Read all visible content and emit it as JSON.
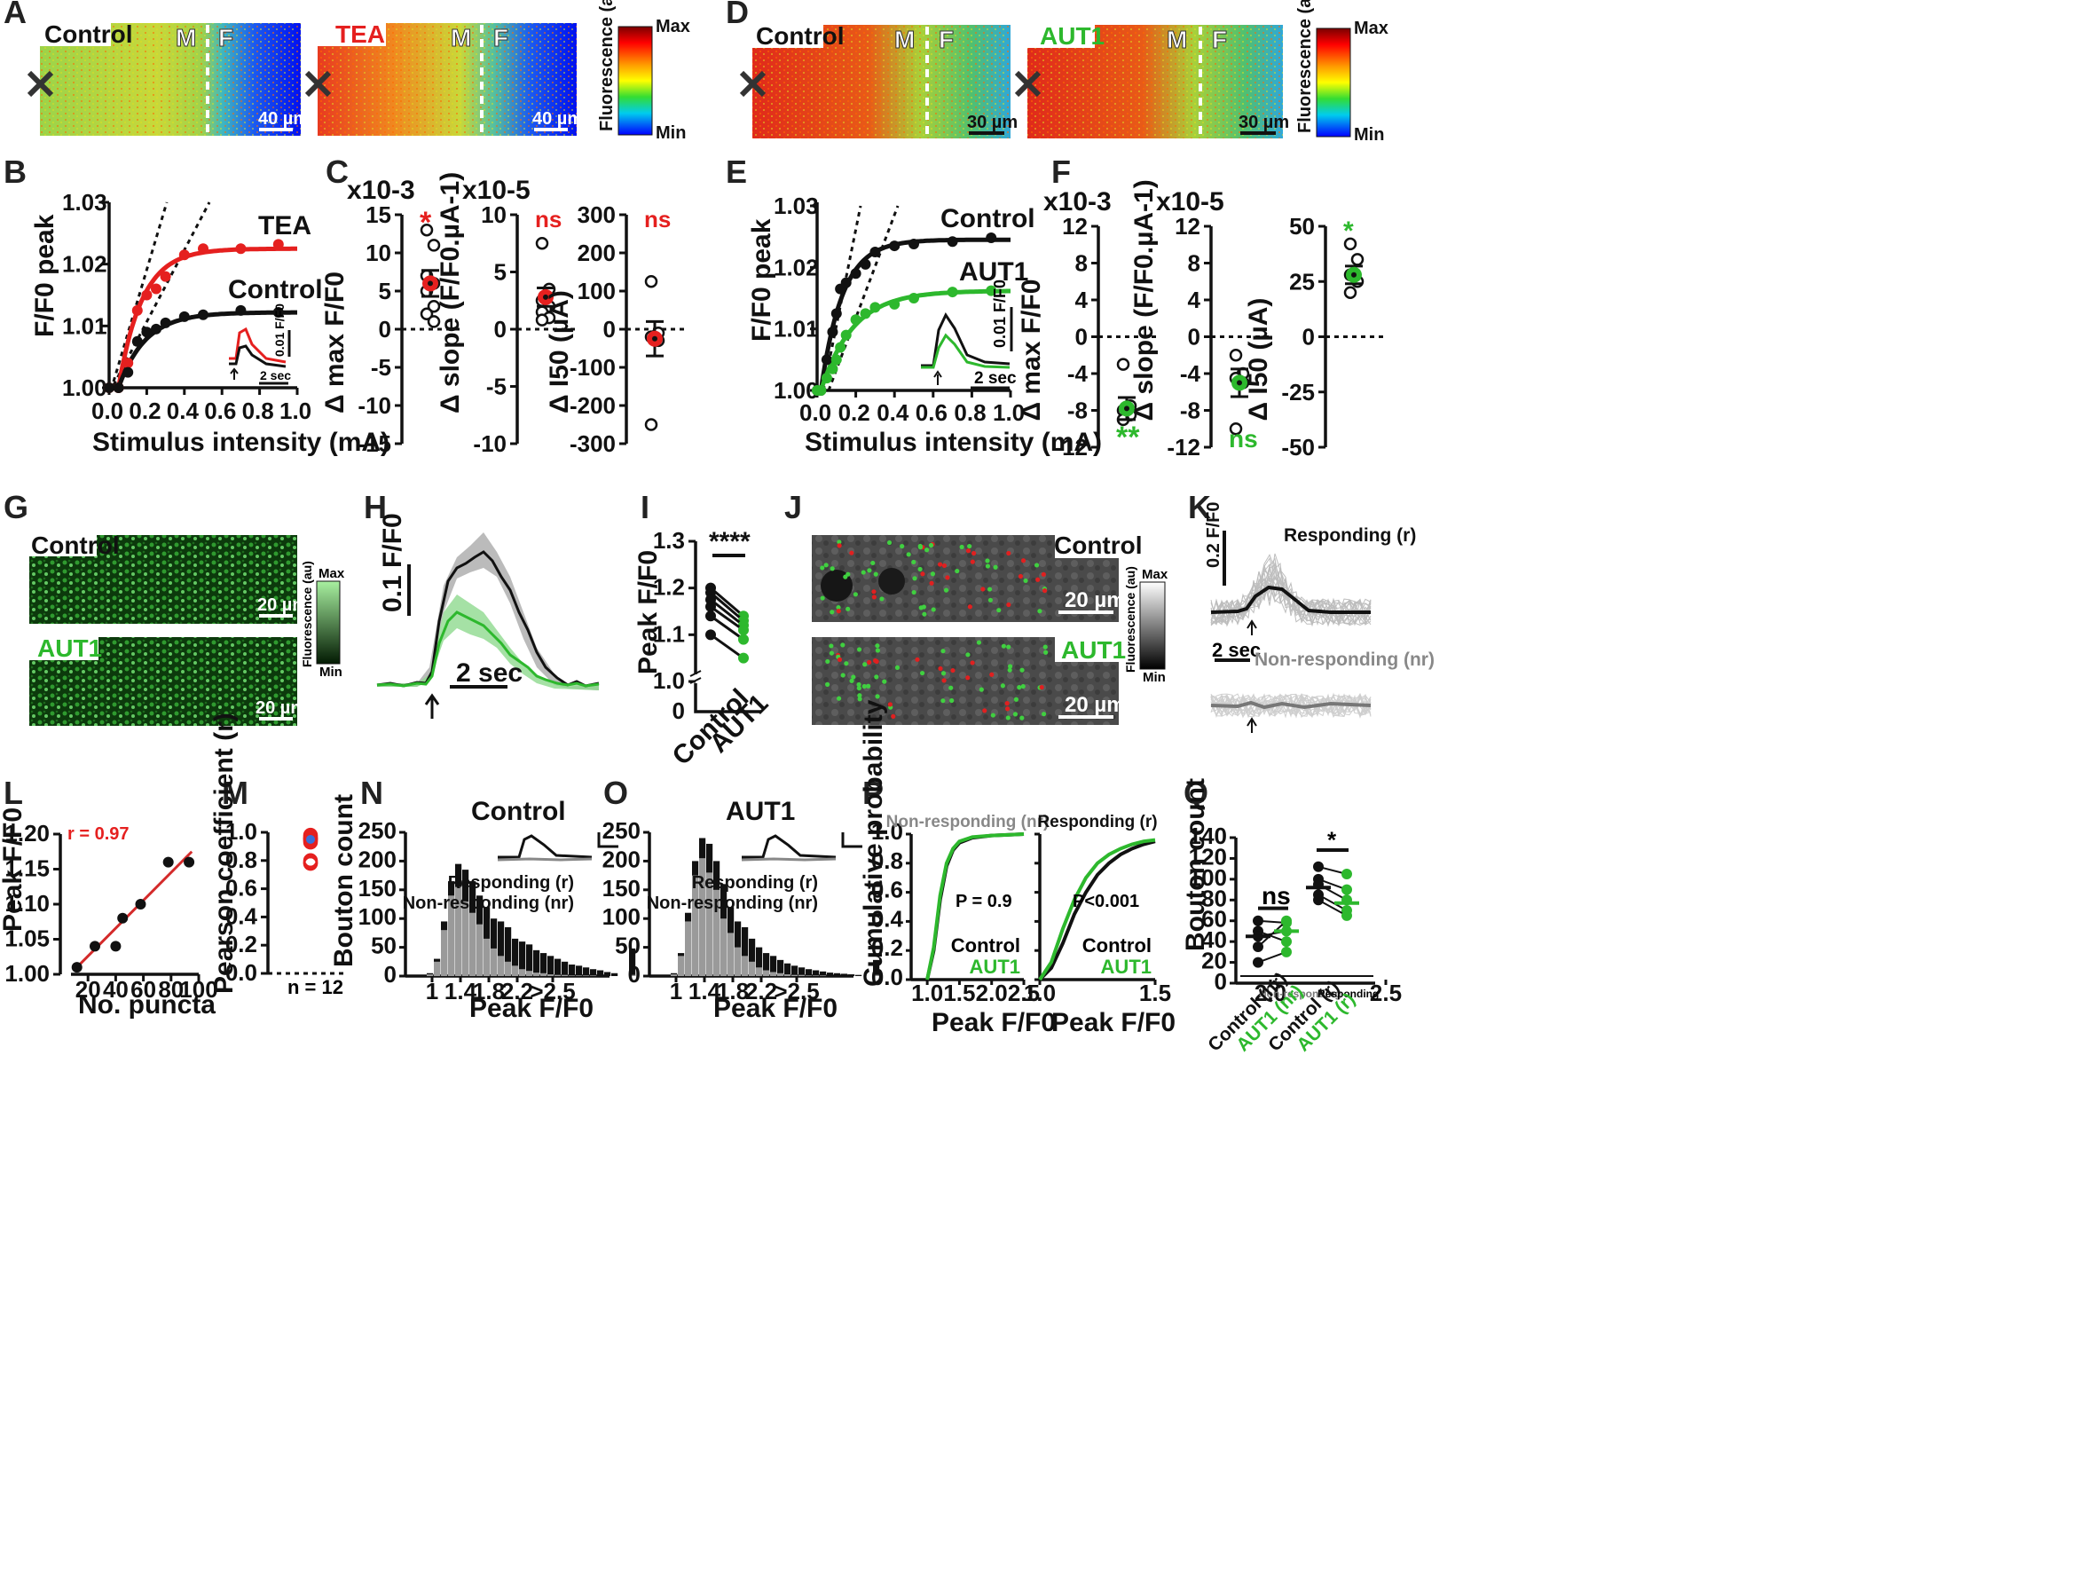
{
  "panel_letters": {
    "A": "A",
    "B": "B",
    "C": "C",
    "D": "D",
    "E": "E",
    "F": "F",
    "G": "G",
    "H": "H",
    "I": "I",
    "J": "J",
    "K": "K",
    "L": "L",
    "M": "M",
    "N": "N",
    "O": "O",
    "P": "P",
    "Q": "Q"
  },
  "colors": {
    "control": "#111111",
    "tea": "#e5201f",
    "aut1": "#2db82d",
    "nonresp": "#888888",
    "fitred": "#d42a2a"
  },
  "heatmap": {
    "control": "Control",
    "tea": "TEA",
    "aut1": "AUT1",
    "marker_m": "M",
    "marker_f": "F",
    "scale_a": "40 µm",
    "scale_d": "30 µm",
    "colorbar_label": "Fluorescence (au)",
    "max": "Max",
    "min": "Min"
  },
  "panelB": {
    "ylabel": "F/F0 peak",
    "xlabel": "Stimulus intensity (mA)",
    "yticks": [
      "1.00",
      "1.01",
      "1.02",
      "1.03"
    ],
    "xticks": [
      "0.0",
      "0.2",
      "0.4",
      "0.6",
      "0.8",
      "1.0"
    ],
    "series_tea": "TEA",
    "series_control": "Control",
    "inset_scale_y": "0.01 F/F0",
    "inset_scale_x": "2 sec"
  },
  "panelC": {
    "p1": {
      "ylabel": "Δ max F/F0",
      "exp": "x10-3",
      "yticks": [
        "15",
        "10",
        "5",
        "0",
        "-5",
        "-10",
        "-15"
      ],
      "sig": "*"
    },
    "p2": {
      "ylabel": "Δ slope (F/F0.µA-1)",
      "exp": "x10-5",
      "yticks": [
        "10",
        "5",
        "0",
        "-5",
        "-10"
      ],
      "sig": "ns"
    },
    "p3": {
      "ylabel": "Δ I50 (µA)",
      "yticks": [
        "300",
        "200",
        "100",
        "0",
        "-100",
        "-200",
        "-300"
      ],
      "sig": "ns"
    }
  },
  "panelE": {
    "ylabel": "F/F0 peak",
    "xlabel": "Stimulus intensity (mA)",
    "yticks": [
      "1.00",
      "1.01",
      "1.02",
      "1.03"
    ],
    "xticks": [
      "0.0",
      "0.2",
      "0.4",
      "0.6",
      "0.8",
      "1.0"
    ],
    "series_control": "Control",
    "series_aut1": "AUT1",
    "inset_scale_y": "0.01 F/F0",
    "inset_scale_x": "2 sec"
  },
  "panelF": {
    "p1": {
      "ylabel": "Δ max F/F0",
      "exp": "x10-3",
      "yticks": [
        "12",
        "8",
        "4",
        "0",
        "-4",
        "-8",
        "-12"
      ],
      "sig": "**"
    },
    "p2": {
      "ylabel": "Δ slope (F/F0.µA-1)",
      "exp": "x10-5",
      "yticks": [
        "12",
        "8",
        "4",
        "0",
        "-4",
        "-8",
        "-12"
      ],
      "sig": "ns"
    },
    "p3": {
      "ylabel": "Δ I50 (µA)",
      "yticks": [
        "50",
        "25",
        "0",
        "-25",
        "-50"
      ],
      "sig": "*"
    }
  },
  "panelG": {
    "control": "Control",
    "aut1": "AUT1",
    "scale": "20 µm",
    "colorbar_label": "Fluorescence (au)",
    "max": "Max",
    "min": "Min"
  },
  "panelH": {
    "scale_y": "0.1 F/F0",
    "scale_x": "2 sec"
  },
  "panelI": {
    "ylabel": "Peak F/F0",
    "yticks": [
      "1.3",
      "1.2",
      "1.1",
      "1.0",
      "0"
    ],
    "xcats": [
      "Control",
      "AUT1"
    ],
    "sig": "****"
  },
  "panelJ": {
    "control": "Control",
    "aut1": "AUT1",
    "scale": "20 µm",
    "colorbar_label": "Fluorescence (au)",
    "max": "Max",
    "min": "Min"
  },
  "panelK": {
    "scale_y": "0.2 F/F0",
    "scale_x": "2 sec",
    "resp": "Responding (r)",
    "nonresp": "Non-responding (nr)"
  },
  "panelL": {
    "ylabel": "Peak F/F0",
    "xlabel": "No. puncta",
    "r": "r = 0.97",
    "yticks": [
      "1.20",
      "1.15",
      "1.10",
      "1.05",
      "1.00"
    ],
    "xticks": [
      "20",
      "40",
      "60",
      "80",
      "100"
    ]
  },
  "panelM": {
    "ylabel": "Pearson coefficient (r)",
    "yticks": [
      "1.0",
      "0.8",
      "0.6",
      "0.4",
      "0.2",
      "0.0"
    ],
    "n": "n = 12"
  },
  "panelN": {
    "title": "Control",
    "ylabel": "Bouton count",
    "xlabel": "Peak F/F0",
    "yticks": [
      "250",
      "200",
      "150",
      "100",
      "50",
      "0"
    ],
    "xticks": [
      "1",
      "1.4",
      "1.8",
      "2.2",
      ">2.5"
    ],
    "resp": "Responding (r)",
    "nonresp": "Non-responding (nr)"
  },
  "panelO": {
    "title": "AUT1",
    "xlabel": "Peak F/F0",
    "yticks": [
      "250",
      "200",
      "150",
      "100",
      "50",
      "0"
    ],
    "xticks": [
      "1",
      "1.4",
      "1.8",
      "2.2",
      ">2.5"
    ],
    "resp": "Responding (r)",
    "nonresp": "Non-responding (nr)"
  },
  "panelP": {
    "ylabel": "Cumulative probability",
    "xlabel": "Peak F/F0",
    "yticks": [
      "1.0",
      "0.8",
      "0.6",
      "0.4",
      "0.2",
      "0.0"
    ],
    "xticks": [
      "1.0",
      "1.5",
      "2.0",
      "2.5"
    ],
    "xticks2": [
      "1.0",
      "1.5",
      "2.0",
      "2.5"
    ],
    "title_nr": "Non-responding (nr)",
    "title_r": "Responding (r)",
    "p_nr": "P = 0.9",
    "p_r": "P<0.001",
    "control": "Control",
    "aut1": "AUT1"
  },
  "panelQ": {
    "ylabel": "Bouton count",
    "yticks": [
      "140",
      "120",
      "100",
      "80",
      "60",
      "40",
      "20",
      "0"
    ],
    "xcats": [
      "Control (nr)",
      "AUT1 (nr)",
      "Control (r)",
      "AUT1 (r)"
    ],
    "group_nr": "Non-responding",
    "group_r": "Responding",
    "sig_nr": "ns",
    "sig_r": "*"
  },
  "chart_data": [
    {
      "type": "scatter",
      "panel": "B",
      "title": "",
      "xlabel": "Stimulus intensity (mA)",
      "ylabel": "F/F0 peak",
      "xlim": [
        0,
        1.0
      ],
      "ylim": [
        1.0,
        1.03
      ],
      "series": [
        {
          "name": "TEA",
          "x": [
            0,
            0.05,
            0.1,
            0.15,
            0.2,
            0.25,
            0.3,
            0.4,
            0.5,
            0.7,
            0.9
          ],
          "y": [
            1.0,
            1.0,
            1.004,
            1.0125,
            1.015,
            1.016,
            1.018,
            1.0215,
            1.0225,
            1.0225,
            1.0232
          ]
        },
        {
          "name": "Control",
          "x": [
            0,
            0.05,
            0.1,
            0.15,
            0.2,
            0.25,
            0.3,
            0.4,
            0.5,
            0.7,
            0.9
          ],
          "y": [
            1.0,
            1.0,
            1.0025,
            1.0075,
            1.009,
            1.0095,
            1.0105,
            1.0115,
            1.0118,
            1.0125,
            1.0122
          ]
        }
      ]
    },
    {
      "type": "scatter",
      "panel": "C1",
      "ylabel": "Δ max F/F0 (x10-3)",
      "ylim": [
        -15,
        15
      ],
      "mean": 6,
      "sem": 1.7,
      "values": [
        13,
        11,
        7,
        6,
        5,
        3,
        2,
        1
      ]
    },
    {
      "type": "scatter",
      "panel": "C2",
      "ylabel": "Δ slope (x10-5)",
      "ylim": [
        -10,
        10
      ],
      "mean": 2.8,
      "sem": 0.8,
      "values": [
        7.5,
        3.5,
        2.5,
        2,
        1.5,
        1,
        0.8
      ]
    },
    {
      "type": "scatter",
      "panel": "C3",
      "ylabel": "Δ I50 (µA)",
      "ylim": [
        -300,
        300
      ],
      "mean": -25,
      "sem": 45,
      "values": [
        125,
        -10,
        -20,
        -30,
        -250
      ]
    },
    {
      "type": "scatter",
      "panel": "E",
      "xlabel": "Stimulus intensity (mA)",
      "ylabel": "F/F0 peak",
      "xlim": [
        0,
        1.0
      ],
      "ylim": [
        1.0,
        1.03
      ],
      "series": [
        {
          "name": "Control",
          "x": [
            0,
            0.02,
            0.05,
            0.08,
            0.1,
            0.12,
            0.15,
            0.2,
            0.25,
            0.3,
            0.4,
            0.5,
            0.7,
            0.9
          ],
          "y": [
            1.0,
            1.0,
            1.005,
            1.0095,
            1.0125,
            1.0165,
            1.0175,
            1.019,
            1.0205,
            1.0225,
            1.0235,
            1.0238,
            1.0242,
            1.0248
          ]
        },
        {
          "name": "AUT1",
          "x": [
            0,
            0.02,
            0.05,
            0.08,
            0.1,
            0.12,
            0.15,
            0.2,
            0.25,
            0.3,
            0.4,
            0.5,
            0.7,
            0.9
          ],
          "y": [
            1.0,
            1.0,
            1.002,
            1.0035,
            1.005,
            1.007,
            1.009,
            1.0115,
            1.0125,
            1.0135,
            1.014,
            1.015,
            1.016,
            1.0162
          ]
        }
      ]
    },
    {
      "type": "scatter",
      "panel": "F1",
      "ylabel": "Δ max F/F0 (x10-3)",
      "ylim": [
        -12,
        12
      ],
      "mean": -7.8,
      "sem": 1.2,
      "values": [
        -3,
        -7.5,
        -8,
        -8.5,
        -9
      ]
    },
    {
      "type": "scatter",
      "panel": "F2",
      "ylabel": "Δ slope (x10-5)",
      "ylim": [
        -12,
        12
      ],
      "mean": -5,
      "sem": 1.5,
      "values": [
        -2,
        -4,
        -4.5,
        -5,
        -10
      ]
    },
    {
      "type": "scatter",
      "panel": "F3",
      "ylabel": "Δ I50 (µA)",
      "ylim": [
        -50,
        50
      ],
      "mean": 28,
      "sem": 4,
      "values": [
        42,
        35,
        28,
        25,
        20
      ]
    },
    {
      "type": "line",
      "panel": "H",
      "series": [
        {
          "name": "Control",
          "peak": 1.29
        },
        {
          "name": "AUT1",
          "peak": 1.18
        }
      ]
    },
    {
      "type": "line",
      "panel": "I",
      "ylabel": "Peak F/F0",
      "categories": [
        "Control",
        "AUT1"
      ],
      "ylim": [
        1.0,
        1.3
      ],
      "series": [
        {
          "values": [
            1.2,
            1.14
          ]
        },
        {
          "values": [
            1.19,
            1.13
          ]
        },
        {
          "values": [
            1.175,
            1.12
          ]
        },
        {
          "values": [
            1.16,
            1.11
          ]
        },
        {
          "values": [
            1.14,
            1.09
          ]
        },
        {
          "values": [
            1.1,
            1.05
          ]
        }
      ]
    },
    {
      "type": "scatter",
      "panel": "L",
      "xlabel": "No. puncta",
      "ylabel": "Peak F/F0",
      "xlim": [
        0,
        100
      ],
      "ylim": [
        1.0,
        1.2
      ],
      "x": [
        12,
        25,
        40,
        45,
        58,
        78,
        93
      ],
      "y": [
        1.01,
        1.04,
        1.04,
        1.08,
        1.1,
        1.16,
        1.16
      ],
      "fit": {
        "x": [
          12,
          95
        ],
        "y": [
          1.01,
          1.175
        ]
      },
      "r": 0.97
    },
    {
      "type": "scatter",
      "panel": "M",
      "ylabel": "Pearson coefficient (r)",
      "ylim": [
        0,
        1.0
      ],
      "values": [
        0.98,
        0.97,
        0.96,
        0.96,
        0.95,
        0.95,
        0.94,
        0.93,
        0.8,
        0.79,
        0.78,
        0.78
      ],
      "n": 12
    },
    {
      "type": "bar",
      "panel": "N",
      "title": "Control",
      "xlabel": "Peak F/F0",
      "ylabel": "Bouton count",
      "ylim": [
        0,
        250
      ],
      "categories": [
        "1.0",
        "1.05",
        "1.1",
        "1.15",
        "1.2",
        "1.25",
        "1.3",
        "1.35",
        "1.4",
        "1.45",
        "1.5",
        "1.55",
        "1.6",
        "1.65",
        "1.7",
        "1.75",
        "1.8",
        "1.85",
        "1.9",
        "1.95",
        "2.0",
        "2.05",
        "2.1",
        "2.15",
        "2.2",
        "2.25",
        "2.3",
        ">2.5"
      ],
      "series": [
        {
          "name": "Responding (r)",
          "values": [
            5,
            30,
            95,
            165,
            195,
            185,
            165,
            140,
            120,
            100,
            95,
            85,
            65,
            60,
            55,
            45,
            40,
            35,
            30,
            25,
            20,
            18,
            15,
            12,
            10,
            7,
            5,
            48
          ]
        },
        {
          "name": "Non-responding (nr)",
          "values": [
            3,
            25,
            80,
            140,
            155,
            130,
            110,
            90,
            65,
            48,
            35,
            25,
            18,
            12,
            9,
            6,
            5,
            3,
            2,
            2,
            1,
            1,
            1,
            1,
            0,
            0,
            0,
            2
          ]
        }
      ]
    },
    {
      "type": "bar",
      "panel": "O",
      "title": "AUT1",
      "xlabel": "Peak F/F0",
      "ylabel": "Bouton count",
      "ylim": [
        0,
        250
      ],
      "categories": [
        "1.0",
        "1.05",
        "1.1",
        "1.15",
        "1.2",
        "1.25",
        "1.3",
        "1.35",
        "1.4",
        "1.45",
        "1.5",
        "1.55",
        "1.6",
        "1.65",
        "1.7",
        "1.75",
        "1.8",
        "1.85",
        "1.9",
        "1.95",
        "2.0",
        "2.05",
        "2.1",
        "2.15",
        "2.2",
        "2.25",
        "2.3",
        ">2.5"
      ],
      "series": [
        {
          "name": "Responding (r)",
          "values": [
            5,
            40,
            110,
            200,
            240,
            230,
            200,
            160,
            120,
            95,
            85,
            65,
            50,
            40,
            35,
            28,
            22,
            18,
            15,
            12,
            10,
            8,
            6,
            5,
            4,
            3,
            2,
            28
          ]
        },
        {
          "name": "Non-responding (nr)",
          "values": [
            3,
            35,
            95,
            175,
            205,
            180,
            150,
            100,
            75,
            50,
            35,
            25,
            15,
            10,
            7,
            5,
            3,
            2,
            2,
            1,
            1,
            1,
            0,
            0,
            0,
            0,
            0,
            2
          ]
        }
      ]
    },
    {
      "type": "line",
      "panel": "P-nr",
      "xlabel": "Peak F/F0",
      "ylabel": "Cumulative probability",
      "xlim": [
        0.75,
        2.5
      ],
      "ylim": [
        0,
        1.0
      ],
      "series": [
        {
          "name": "Control",
          "x": [
            1.0,
            1.1,
            1.2,
            1.3,
            1.4,
            1.5,
            1.7,
            2.0,
            2.5
          ],
          "y": [
            0,
            0.2,
            0.55,
            0.78,
            0.89,
            0.94,
            0.975,
            0.99,
            1.0
          ]
        },
        {
          "name": "AUT1",
          "x": [
            1.0,
            1.1,
            1.2,
            1.3,
            1.4,
            1.5,
            1.7,
            2.0,
            2.5
          ],
          "y": [
            0,
            0.22,
            0.58,
            0.8,
            0.9,
            0.95,
            0.98,
            0.99,
            1.0
          ]
        }
      ]
    },
    {
      "type": "line",
      "panel": "P-r",
      "xlabel": "Peak F/F0",
      "xlim": [
        1.0,
        1.5
      ],
      "ylim": [
        0,
        1.0
      ],
      "series": [
        {
          "name": "Control",
          "x": [
            1.0,
            1.05,
            1.1,
            1.15,
            1.2,
            1.25,
            1.3,
            1.35,
            1.4,
            1.45,
            1.5
          ],
          "y": [
            0,
            0.08,
            0.25,
            0.45,
            0.6,
            0.72,
            0.8,
            0.86,
            0.9,
            0.93,
            0.95
          ]
        },
        {
          "name": "AUT1",
          "x": [
            1.0,
            1.05,
            1.1,
            1.15,
            1.2,
            1.25,
            1.3,
            1.35,
            1.4,
            1.45,
            1.5
          ],
          "y": [
            0,
            0.12,
            0.35,
            0.55,
            0.7,
            0.8,
            0.86,
            0.9,
            0.93,
            0.95,
            0.96
          ]
        }
      ]
    },
    {
      "type": "scatter",
      "panel": "Q",
      "ylabel": "Bouton count",
      "ylim": [
        0,
        140
      ],
      "categories": [
        "Control (nr)",
        "AUT1 (nr)",
        "Control (r)",
        "AUT1 (r)"
      ],
      "pairs_nr": [
        [
          60,
          58
        ],
        [
          50,
          40
        ],
        [
          45,
          50
        ],
        [
          35,
          60
        ],
        [
          20,
          30
        ]
      ],
      "pairs_r": [
        [
          112,
          105
        ],
        [
          100,
          90
        ],
        [
          95,
          80
        ],
        [
          85,
          70
        ],
        [
          80,
          65
        ]
      ],
      "means": [
        45,
        50,
        92,
        77
      ]
    }
  ]
}
